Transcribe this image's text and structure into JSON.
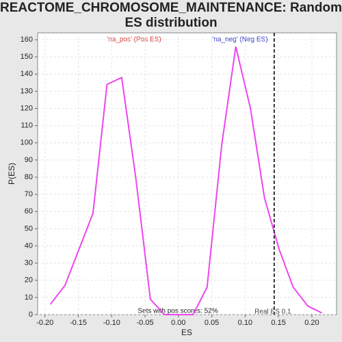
{
  "chart_data": {
    "type": "line",
    "title": "REACTOME_CHROMOSOME_MAINTENANCE: Random ES distribution",
    "xlabel": "ES",
    "ylabel": "P(ES)",
    "x": [
      -0.192,
      -0.17,
      -0.15,
      -0.128,
      -0.107,
      -0.085,
      -0.064,
      -0.042,
      -0.021,
      0.0,
      0.022,
      0.043,
      0.065,
      0.086,
      0.108,
      0.129,
      0.151,
      0.172,
      0.194,
      0.215
    ],
    "series": [
      {
        "name": "P(ES)",
        "color": "#ee44ee",
        "values": [
          6,
          17,
          37,
          59,
          134,
          138,
          80,
          9,
          0,
          0,
          0,
          16,
          99,
          156,
          120,
          68,
          38,
          16,
          5,
          1
        ]
      }
    ],
    "xlim": [
      -0.211,
      0.237
    ],
    "ylim": [
      0,
      164
    ],
    "xticks": [
      {
        "value": -0.2,
        "label": "-0.20"
      },
      {
        "value": -0.15,
        "label": "-0.15"
      },
      {
        "value": -0.1,
        "label": "-0.10"
      },
      {
        "value": -0.05,
        "label": "-0.05"
      },
      {
        "value": 0,
        "label": "0.00"
      },
      {
        "value": 0.05,
        "label": "0.05"
      },
      {
        "value": 0.1,
        "label": "0.10"
      },
      {
        "value": 0.15,
        "label": "0.15"
      },
      {
        "value": 0.2,
        "label": "0.20"
      }
    ],
    "yticks": [
      0,
      10,
      20,
      30,
      40,
      50,
      60,
      70,
      80,
      90,
      100,
      110,
      120,
      130,
      140,
      150,
      160
    ],
    "grid": true,
    "real_es": {
      "value": 0.1436,
      "label": "Real ES 0.1"
    },
    "annotations": {
      "pos": "'na_pos' (Pos ES)",
      "neg": "'na_neg' (Neg ES)",
      "sets": "Sets with pos scores: 52%"
    }
  }
}
